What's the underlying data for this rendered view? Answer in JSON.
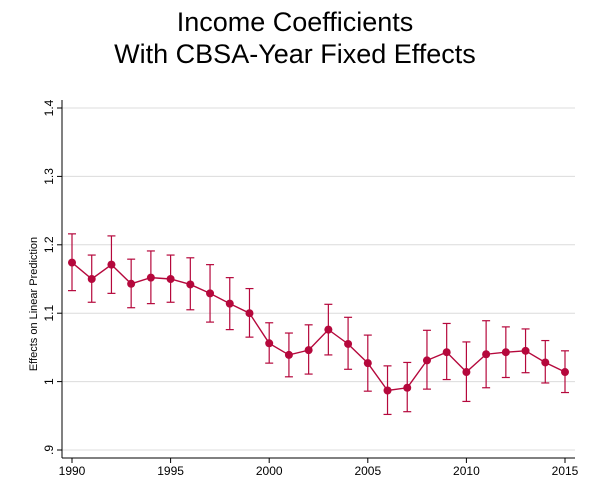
{
  "chart_data": {
    "type": "line",
    "title_lines": [
      "Income Coefficients",
      "With CBSA-Year Fixed Effects"
    ],
    "xlabel": "",
    "ylabel": "Effects on Linear Prediction",
    "xlim": [
      1990,
      2015
    ],
    "ylim": [
      0.9,
      1.4
    ],
    "xticks": [
      1990,
      1995,
      2000,
      2005,
      2010,
      2015
    ],
    "yticks": [
      0.9,
      1.0,
      1.1,
      1.2,
      1.3,
      1.4
    ],
    "ytick_labels": [
      ".9",
      "1",
      "1.1",
      "1.2",
      "1.3",
      "1.4"
    ],
    "grid": true,
    "color": "#b5083c",
    "x": [
      1990,
      1991,
      1992,
      1993,
      1994,
      1995,
      1996,
      1997,
      1998,
      1999,
      2000,
      2001,
      2002,
      2003,
      2004,
      2005,
      2006,
      2007,
      2008,
      2009,
      2010,
      2011,
      2012,
      2013,
      2014,
      2015
    ],
    "y": [
      1.174,
      1.15,
      1.171,
      1.143,
      1.152,
      1.15,
      1.142,
      1.129,
      1.114,
      1.1,
      1.056,
      1.039,
      1.046,
      1.076,
      1.055,
      1.027,
      0.987,
      0.991,
      1.031,
      1.043,
      1.014,
      1.04,
      1.043,
      1.045,
      1.028,
      1.014
    ],
    "ci_lower": [
      1.133,
      1.116,
      1.129,
      1.108,
      1.114,
      1.116,
      1.105,
      1.087,
      1.076,
      1.065,
      1.027,
      1.007,
      1.011,
      1.039,
      1.018,
      0.986,
      0.952,
      0.956,
      0.989,
      1.003,
      0.971,
      0.991,
      1.006,
      1.013,
      0.998,
      0.984
    ],
    "ci_upper": [
      1.216,
      1.185,
      1.213,
      1.179,
      1.191,
      1.185,
      1.181,
      1.171,
      1.152,
      1.136,
      1.086,
      1.071,
      1.083,
      1.113,
      1.094,
      1.068,
      1.023,
      1.028,
      1.075,
      1.085,
      1.058,
      1.089,
      1.08,
      1.077,
      1.06,
      1.045
    ]
  }
}
